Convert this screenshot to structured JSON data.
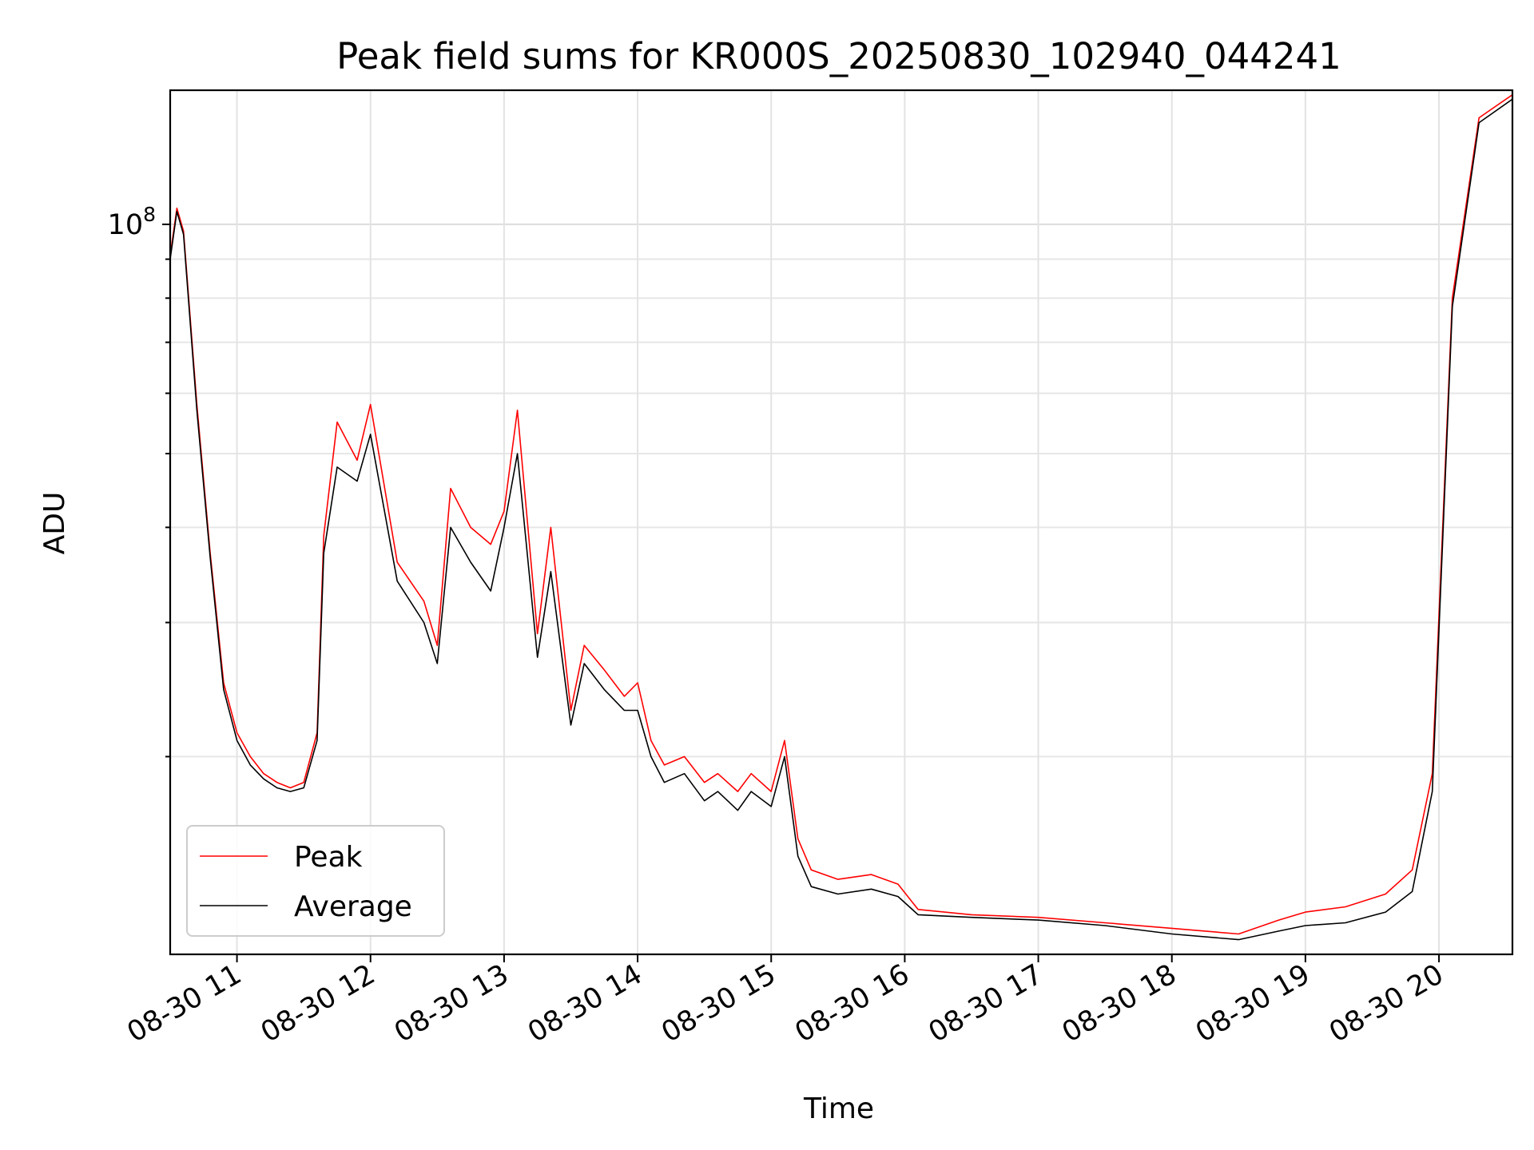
{
  "chart_data": {
    "type": "line",
    "title": "Peak field sums for KR000S_20250830_102940_044241",
    "xlabel": "Time",
    "ylabel": "ADU",
    "y_scale": "log",
    "y_major_tick": {
      "value": 100000000,
      "base": "10",
      "exponent": "8"
    },
    "ylim": [
      11000000,
      150000000
    ],
    "x_tick_labels": [
      "08-30 11",
      "08-30 12",
      "08-30 13",
      "08-30 14",
      "08-30 15",
      "08-30 16",
      "08-30 17",
      "08-30 18",
      "08-30 19",
      "08-30 20"
    ],
    "x_tick_hours": [
      11,
      12,
      13,
      14,
      15,
      16,
      17,
      18,
      19,
      20
    ],
    "xlim_hours": [
      10.5,
      20.55
    ],
    "grid": true,
    "legend_position": "lower-left",
    "x_hours": [
      10.5,
      10.55,
      10.6,
      10.7,
      10.8,
      10.9,
      11.0,
      11.1,
      11.2,
      11.3,
      11.4,
      11.5,
      11.6,
      11.65,
      11.75,
      11.9,
      12.0,
      12.2,
      12.4,
      12.5,
      12.6,
      12.75,
      12.9,
      13.0,
      13.1,
      13.25,
      13.35,
      13.5,
      13.6,
      13.75,
      13.9,
      14.0,
      14.1,
      14.2,
      14.35,
      14.5,
      14.6,
      14.75,
      14.85,
      15.0,
      15.1,
      15.2,
      15.3,
      15.5,
      15.75,
      15.95,
      16.1,
      16.5,
      17.0,
      17.5,
      18.0,
      18.5,
      18.8,
      19.0,
      19.3,
      19.6,
      19.8,
      19.95,
      20.1,
      20.3,
      20.55
    ],
    "series": [
      {
        "name": "Peak",
        "color": "#ff0000",
        "values": [
          91000000,
          105000000,
          98000000,
          58000000,
          37000000,
          25000000,
          21500000,
          20000000,
          19000000,
          18500000,
          18200000,
          18500000,
          21500000,
          39000000,
          55000000,
          49000000,
          58000000,
          36000000,
          32000000,
          28000000,
          45000000,
          40000000,
          38000000,
          42000000,
          57000000,
          29000000,
          40000000,
          23000000,
          28000000,
          26000000,
          24000000,
          25000000,
          21000000,
          19500000,
          20000000,
          18500000,
          19000000,
          18000000,
          19000000,
          18000000,
          21000000,
          15600000,
          14200000,
          13800000,
          14000000,
          13600000,
          12600000,
          12400000,
          12300000,
          12100000,
          11900000,
          11700000,
          12200000,
          12500000,
          12700000,
          13200000,
          14200000,
          19000000,
          80000000,
          138000000,
          148000000
        ]
      },
      {
        "name": "Average",
        "color": "#000000",
        "values": [
          90000000,
          104000000,
          97000000,
          57000000,
          36500000,
          24500000,
          21000000,
          19500000,
          18700000,
          18200000,
          18000000,
          18200000,
          21000000,
          37000000,
          48000000,
          46000000,
          53000000,
          34000000,
          30000000,
          26500000,
          40000000,
          36000000,
          33000000,
          40000000,
          50000000,
          27000000,
          35000000,
          22000000,
          26500000,
          24500000,
          23000000,
          23000000,
          20000000,
          18500000,
          19000000,
          17500000,
          18000000,
          17000000,
          18000000,
          17200000,
          20000000,
          14800000,
          13500000,
          13200000,
          13400000,
          13100000,
          12400000,
          12300000,
          12200000,
          12000000,
          11700000,
          11500000,
          11800000,
          12000000,
          12100000,
          12500000,
          13300000,
          18000000,
          78000000,
          136000000,
          146000000
        ]
      }
    ]
  }
}
